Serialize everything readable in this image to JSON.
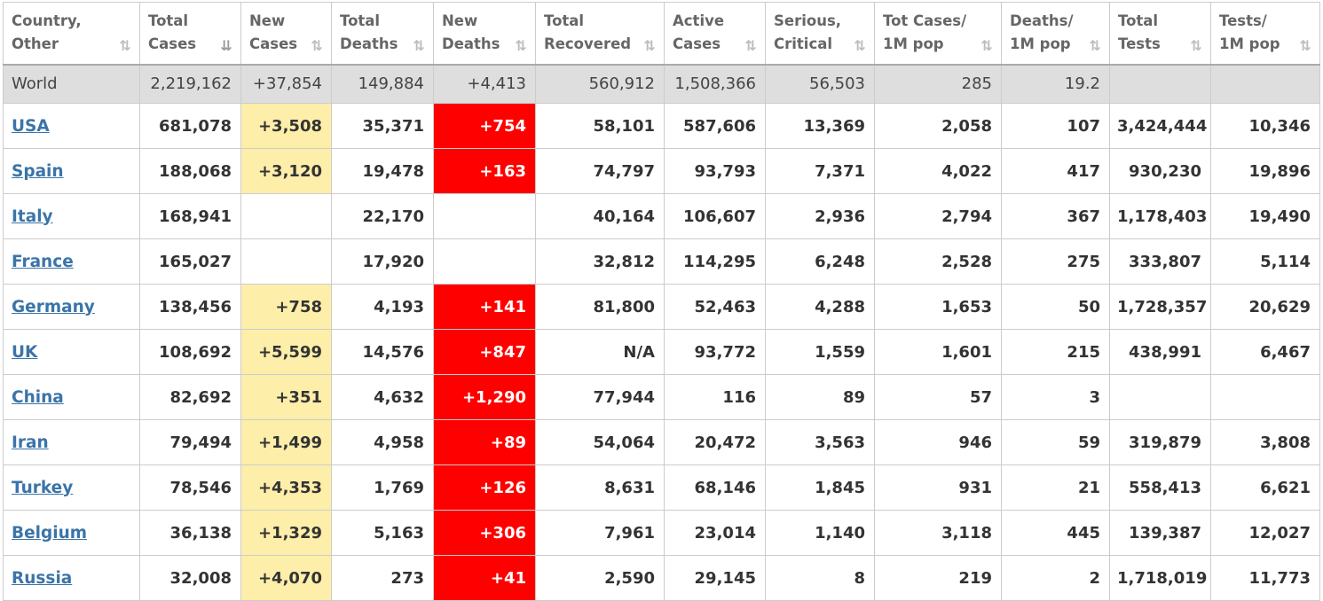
{
  "columns": [
    {
      "line1": "Country,",
      "line2": "Other",
      "sort_glyph": "⇅"
    },
    {
      "line1": "Total",
      "line2": "Cases",
      "sort_glyph": "⇊"
    },
    {
      "line1": "New",
      "line2": "Cases",
      "sort_glyph": "⇅"
    },
    {
      "line1": "Total",
      "line2": "Deaths",
      "sort_glyph": "⇅"
    },
    {
      "line1": "New",
      "line2": "Deaths",
      "sort_glyph": "⇅"
    },
    {
      "line1": "Total",
      "line2": "Recovered",
      "sort_glyph": "⇅"
    },
    {
      "line1": "Active",
      "line2": "Cases",
      "sort_glyph": "⇅"
    },
    {
      "line1": "Serious,",
      "line2": "Critical",
      "sort_glyph": "⇅"
    },
    {
      "line1": "Tot Cases/",
      "line2": "1M pop",
      "sort_glyph": "⇅"
    },
    {
      "line1": "Deaths/",
      "line2": "1M pop",
      "sort_glyph": "⇅"
    },
    {
      "line1": "Total",
      "line2": "Tests",
      "sort_glyph": "⇅"
    },
    {
      "line1": "Tests/",
      "line2": "1M pop",
      "sort_glyph": "⇅"
    }
  ],
  "world": [
    "World",
    "2,219,162",
    "+37,854",
    "149,884",
    "+4,413",
    "560,912",
    "1,508,366",
    "56,503",
    "285",
    "19.2",
    "",
    ""
  ],
  "rows": [
    [
      "USA",
      "681,078",
      "+3,508",
      "35,371",
      "+754",
      "58,101",
      "587,606",
      "13,369",
      "2,058",
      "107",
      "3,424,444",
      "10,346"
    ],
    [
      "Spain",
      "188,068",
      "+3,120",
      "19,478",
      "+163",
      "74,797",
      "93,793",
      "7,371",
      "4,022",
      "417",
      "930,230",
      "19,896"
    ],
    [
      "Italy",
      "168,941",
      "",
      "22,170",
      "",
      "40,164",
      "106,607",
      "2,936",
      "2,794",
      "367",
      "1,178,403",
      "19,490"
    ],
    [
      "France",
      "165,027",
      "",
      "17,920",
      "",
      "32,812",
      "114,295",
      "6,248",
      "2,528",
      "275",
      "333,807",
      "5,114"
    ],
    [
      "Germany",
      "138,456",
      "+758",
      "4,193",
      "+141",
      "81,800",
      "52,463",
      "4,288",
      "1,653",
      "50",
      "1,728,357",
      "20,629"
    ],
    [
      "UK",
      "108,692",
      "+5,599",
      "14,576",
      "+847",
      "N/A",
      "93,772",
      "1,559",
      "1,601",
      "215",
      "438,991",
      "6,467"
    ],
    [
      "China",
      "82,692",
      "+351",
      "4,632",
      "+1,290",
      "77,944",
      "116",
      "89",
      "57",
      "3",
      "",
      ""
    ],
    [
      "Iran",
      "79,494",
      "+1,499",
      "4,958",
      "+89",
      "54,064",
      "20,472",
      "3,563",
      "946",
      "59",
      "319,879",
      "3,808"
    ],
    [
      "Turkey",
      "78,546",
      "+4,353",
      "1,769",
      "+126",
      "8,631",
      "68,146",
      "1,845",
      "931",
      "21",
      "558,413",
      "6,621"
    ],
    [
      "Belgium",
      "36,138",
      "+1,329",
      "5,163",
      "+306",
      "7,961",
      "23,014",
      "1,140",
      "3,118",
      "445",
      "139,387",
      "12,027"
    ],
    [
      "Russia",
      "32,008",
      "+4,070",
      "273",
      "+41",
      "2,590",
      "29,145",
      "8",
      "219",
      "2",
      "1,718,019",
      "11,773"
    ]
  ],
  "colors": {
    "new_cases_highlight": "#fdeeaa",
    "new_deaths_highlight": "#ff0000",
    "link": "#3b74a8",
    "world_row_bg": "#dedede"
  }
}
